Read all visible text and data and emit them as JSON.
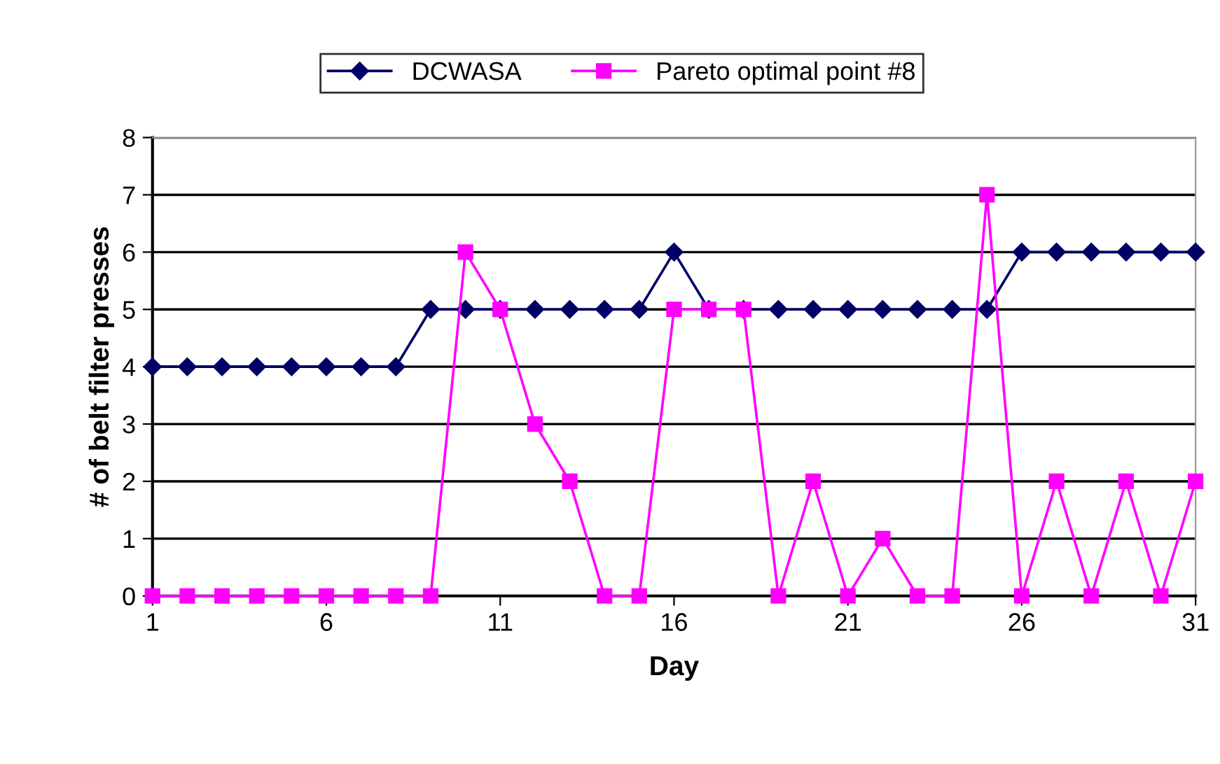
{
  "chart_data": {
    "type": "line",
    "xlabel": "Day",
    "ylabel": "# of belt filter presses",
    "x": [
      1,
      2,
      3,
      4,
      5,
      6,
      7,
      8,
      9,
      10,
      11,
      12,
      13,
      14,
      15,
      16,
      17,
      18,
      19,
      20,
      21,
      22,
      23,
      24,
      25,
      26,
      27,
      28,
      29,
      30,
      31
    ],
    "series": [
      {
        "name": "DCWASA",
        "color": "#000066",
        "marker": "diamond",
        "values": [
          4,
          4,
          4,
          4,
          4,
          4,
          4,
          4,
          5,
          5,
          5,
          5,
          5,
          5,
          5,
          6,
          5,
          5,
          5,
          5,
          5,
          5,
          5,
          5,
          5,
          6,
          6,
          6,
          6,
          6,
          6
        ]
      },
      {
        "name": "Pareto optimal point #8",
        "color": "#ff00ff",
        "marker": "square",
        "values": [
          0,
          0,
          0,
          0,
          0,
          0,
          0,
          0,
          0,
          6,
          5,
          3,
          2,
          0,
          0,
          5,
          5,
          5,
          0,
          2,
          0,
          1,
          0,
          0,
          7,
          0,
          2,
          0,
          2,
          0,
          2
        ]
      }
    ],
    "xlim": [
      1,
      31
    ],
    "xticks": [
      1,
      6,
      11,
      16,
      21,
      26,
      31
    ],
    "ylim": [
      0,
      8
    ],
    "yticks": [
      0,
      1,
      2,
      3,
      4,
      5,
      6,
      7,
      8
    ],
    "grid": "y",
    "legend": "top",
    "line_style": "solid"
  }
}
